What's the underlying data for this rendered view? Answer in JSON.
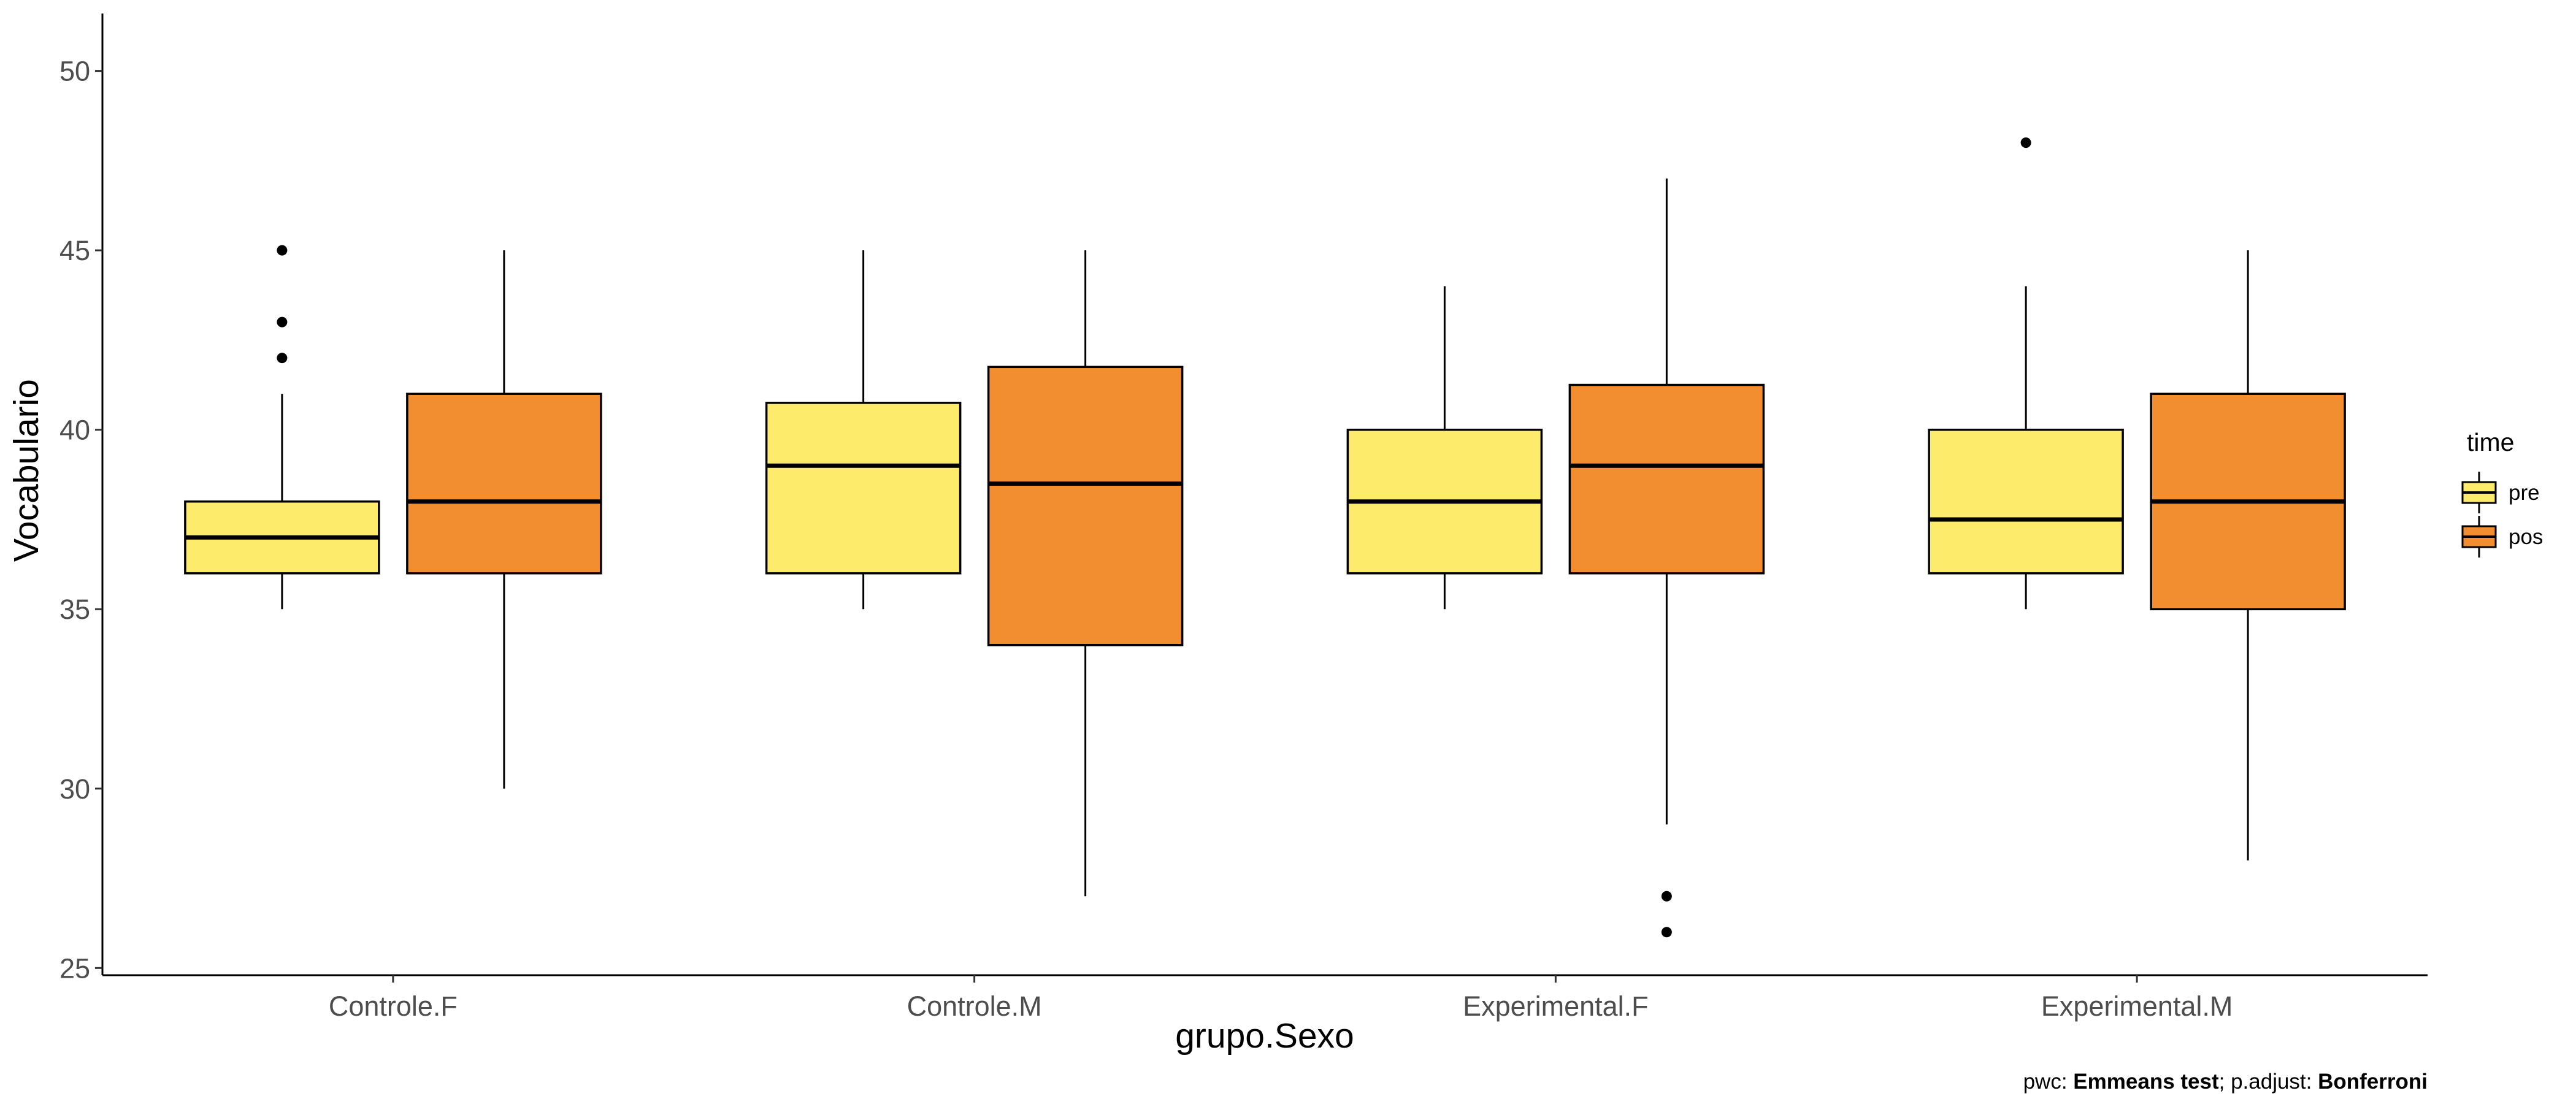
{
  "chart_data": {
    "type": "boxplot",
    "xlabel": "grupo.Sexo",
    "ylabel": "Vocabulario",
    "ylim": [
      24.8,
      51.6
    ],
    "yticks": [
      25,
      30,
      35,
      40,
      45,
      50
    ],
    "categories": [
      "Controle.F",
      "Controle.M",
      "Experimental.F",
      "Experimental.M"
    ],
    "grid": false,
    "legend": {
      "title": "time",
      "position": "right",
      "entries": [
        {
          "label": "pre",
          "color": "#FDEB6B"
        },
        {
          "label": "pos",
          "color": "#F28E2F"
        }
      ]
    },
    "series": [
      {
        "name": "pre",
        "color": "#FDEB6B",
        "boxes": [
          {
            "lower_whisker": 35,
            "q1": 36,
            "median": 37,
            "q3": 38,
            "upper_whisker": 41,
            "outliers": [
              42,
              43,
              45
            ]
          },
          {
            "lower_whisker": 35,
            "q1": 36,
            "median": 39,
            "q3": 40.75,
            "upper_whisker": 45,
            "outliers": []
          },
          {
            "lower_whisker": 35,
            "q1": 36,
            "median": 38,
            "q3": 40,
            "upper_whisker": 44,
            "outliers": []
          },
          {
            "lower_whisker": 35,
            "q1": 36,
            "median": 37.5,
            "q3": 40,
            "upper_whisker": 44,
            "outliers": [
              48
            ]
          }
        ]
      },
      {
        "name": "pos",
        "color": "#F28E2F",
        "boxes": [
          {
            "lower_whisker": 30,
            "q1": 36,
            "median": 38,
            "q3": 41,
            "upper_whisker": 45,
            "outliers": []
          },
          {
            "lower_whisker": 27,
            "q1": 34,
            "median": 38.5,
            "q3": 41.75,
            "upper_whisker": 45,
            "outliers": []
          },
          {
            "lower_whisker": 29,
            "q1": 36,
            "median": 39,
            "q3": 41.25,
            "upper_whisker": 47,
            "outliers": [
              26,
              27
            ]
          },
          {
            "lower_whisker": 28,
            "q1": 35,
            "median": 38,
            "q3": 41,
            "upper_whisker": 45,
            "outliers": []
          }
        ]
      }
    ],
    "caption": {
      "parts": [
        {
          "text": "pwc: ",
          "bold": false
        },
        {
          "text": "Emmeans test",
          "bold": true
        },
        {
          "text": "; p.adjust: ",
          "bold": false
        },
        {
          "text": "Bonferroni",
          "bold": true
        }
      ]
    }
  }
}
